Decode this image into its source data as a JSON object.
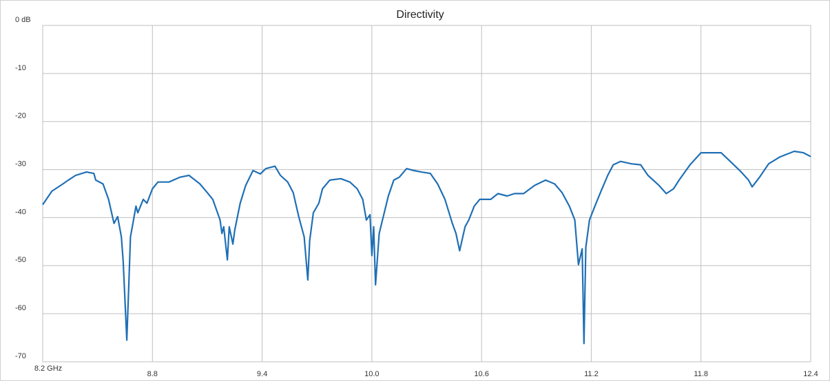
{
  "chart_data": {
    "type": "line",
    "title": "Directivity",
    "x": [
      8.2,
      8.25,
      8.31,
      8.34,
      8.38,
      8.44,
      8.48,
      8.49,
      8.53,
      8.56,
      8.59,
      8.61,
      8.63,
      8.64,
      8.66,
      8.67,
      8.68,
      8.69,
      8.71,
      8.72,
      8.75,
      8.77,
      8.8,
      8.83,
      8.89,
      8.95,
      9.0,
      9.06,
      9.1,
      9.13,
      9.17,
      9.18,
      9.19,
      9.21,
      9.22,
      9.24,
      9.25,
      9.28,
      9.31,
      9.35,
      9.39,
      9.42,
      9.47,
      9.5,
      9.54,
      9.57,
      9.6,
      9.63,
      9.65,
      9.66,
      9.68,
      9.71,
      9.73,
      9.77,
      9.83,
      9.88,
      9.92,
      9.95,
      9.97,
      9.99,
      10.0,
      10.01,
      10.02,
      10.04,
      10.06,
      10.09,
      10.12,
      10.15,
      10.19,
      10.23,
      10.27,
      10.32,
      10.36,
      10.4,
      10.44,
      10.46,
      10.48,
      10.51,
      10.53,
      10.56,
      10.59,
      10.65,
      10.69,
      10.74,
      10.78,
      10.83,
      10.89,
      10.95,
      11.0,
      11.04,
      11.08,
      11.11,
      11.13,
      11.15,
      11.16,
      11.17,
      11.19,
      11.22,
      11.25,
      11.29,
      11.32,
      11.36,
      11.42,
      11.47,
      11.51,
      11.57,
      11.61,
      11.65,
      11.68,
      11.74,
      11.8,
      11.85,
      11.91,
      11.96,
      12.02,
      12.06,
      12.08,
      12.12,
      12.17,
      12.23,
      12.31,
      12.36,
      12.4
    ],
    "series": [
      {
        "name": "Directivity",
        "color": "#1f6fb5",
        "values": [
          -37.3,
          -34.5,
          -33,
          -32.2,
          -31.2,
          -30.5,
          -30.8,
          -32.2,
          -33,
          -36.2,
          -41.2,
          -39.8,
          -44,
          -49,
          -65.5,
          -54.8,
          -44,
          -41.9,
          -37.6,
          -39,
          -36.2,
          -37,
          -34,
          -32.6,
          -32.6,
          -31.6,
          -31.2,
          -33,
          -34.8,
          -36.2,
          -40.5,
          -43.3,
          -41.9,
          -48.8,
          -41.9,
          -45.5,
          -42.6,
          -37,
          -33.3,
          -30.2,
          -30.9,
          -29.8,
          -29.3,
          -31.2,
          -32.6,
          -34.8,
          -39.8,
          -44,
          -53,
          -44.8,
          -39,
          -37,
          -34,
          -32.2,
          -31.9,
          -32.6,
          -34,
          -36.2,
          -40.5,
          -39.4,
          -47.9,
          -41.9,
          -54,
          -43.3,
          -40.2,
          -35.5,
          -32.2,
          -31.6,
          -29.8,
          -30.2,
          -30.5,
          -30.8,
          -33,
          -36.2,
          -41.2,
          -43.3,
          -46.9,
          -41.9,
          -40.5,
          -37.6,
          -36.2,
          -36.2,
          -35,
          -35.5,
          -35,
          -35,
          -33.3,
          -32.2,
          -33,
          -34.8,
          -37.6,
          -40.5,
          -49.8,
          -46.5,
          -66.2,
          -46.2,
          -40.5,
          -37.6,
          -34.8,
          -31.2,
          -29,
          -28.3,
          -28.8,
          -29,
          -31.2,
          -33.3,
          -35,
          -34,
          -32.2,
          -29,
          -26.5,
          -26.5,
          -26.5,
          -28.3,
          -30.5,
          -32.2,
          -33.6,
          -31.6,
          -28.8,
          -27.4,
          -26.2,
          -26.5,
          -27.3
        ]
      }
    ],
    "xlim": [
      8.2,
      12.4
    ],
    "xticks": [
      {
        "value": 8.2,
        "label": "8.2 GHz"
      },
      8.8,
      9.4,
      {
        "value": 10,
        "label": "10.0"
      },
      10.6,
      11.2,
      11.8,
      12.4
    ],
    "ylim": [
      -70,
      0
    ],
    "yticks": [
      {
        "value": 0,
        "label": "0 dB"
      },
      -10,
      -20,
      -30,
      -40,
      -50,
      -60,
      -70
    ],
    "grid": true
  }
}
